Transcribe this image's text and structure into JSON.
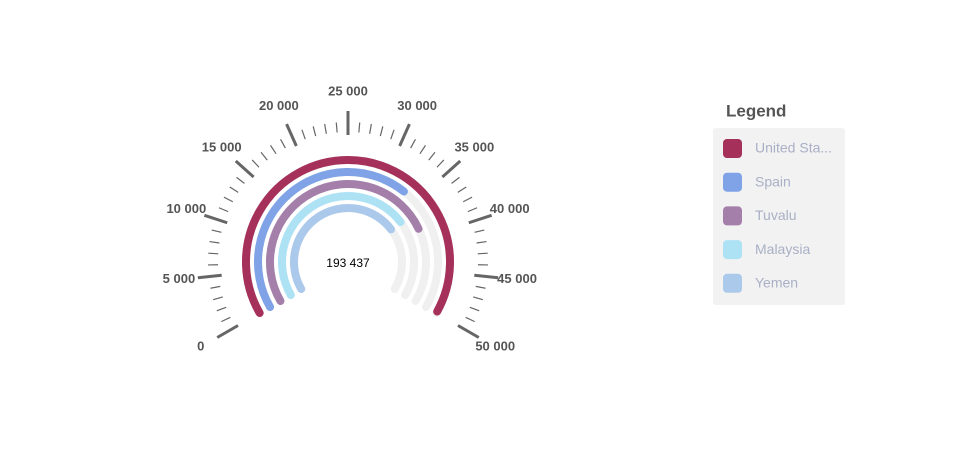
{
  "chart_data": {
    "type": "gauge",
    "center_label": "193 437",
    "legend_title": "Legend",
    "ylim": [
      0,
      50000
    ],
    "yticks": [
      {
        "value": 0,
        "label": "0"
      },
      {
        "value": 5000,
        "label": "5 000"
      },
      {
        "value": 10000,
        "label": "10 000"
      },
      {
        "value": 15000,
        "label": "15 000"
      },
      {
        "value": 20000,
        "label": "20 000"
      },
      {
        "value": 25000,
        "label": "25 000"
      },
      {
        "value": 30000,
        "label": "30 000"
      },
      {
        "value": 35000,
        "label": "35 000"
      },
      {
        "value": 40000,
        "label": "40 000"
      },
      {
        "value": 45000,
        "label": "45 000"
      },
      {
        "value": 50000,
        "label": "50 000"
      }
    ],
    "minor_ticks": [
      1000,
      2000,
      3000,
      4000,
      6000,
      7000,
      8000,
      9000,
      11000,
      12000,
      13000,
      14000,
      16000,
      17000,
      18000,
      19000,
      21000,
      22000,
      23000,
      24000,
      26000,
      27000,
      28000,
      29000,
      31000,
      32000,
      33000,
      34000,
      36000,
      37000,
      38000,
      39000,
      41000,
      42000,
      43000,
      44000,
      46000,
      47000,
      48000,
      49000
    ],
    "series": [
      {
        "name": "United Sta...",
        "color": "#a5315a",
        "values": [
          49800
        ]
      },
      {
        "name": "Spain",
        "color": "#7fa3e6",
        "values": [
          33000
        ]
      },
      {
        "name": "Tuvalu",
        "color": "#a47fa9",
        "values": [
          38500
        ]
      },
      {
        "name": "Malaysia",
        "color": "#ade2f5",
        "values": [
          36000
        ]
      },
      {
        "name": "Yemen",
        "color": "#abc9ea",
        "values": [
          36000
        ]
      }
    ]
  }
}
